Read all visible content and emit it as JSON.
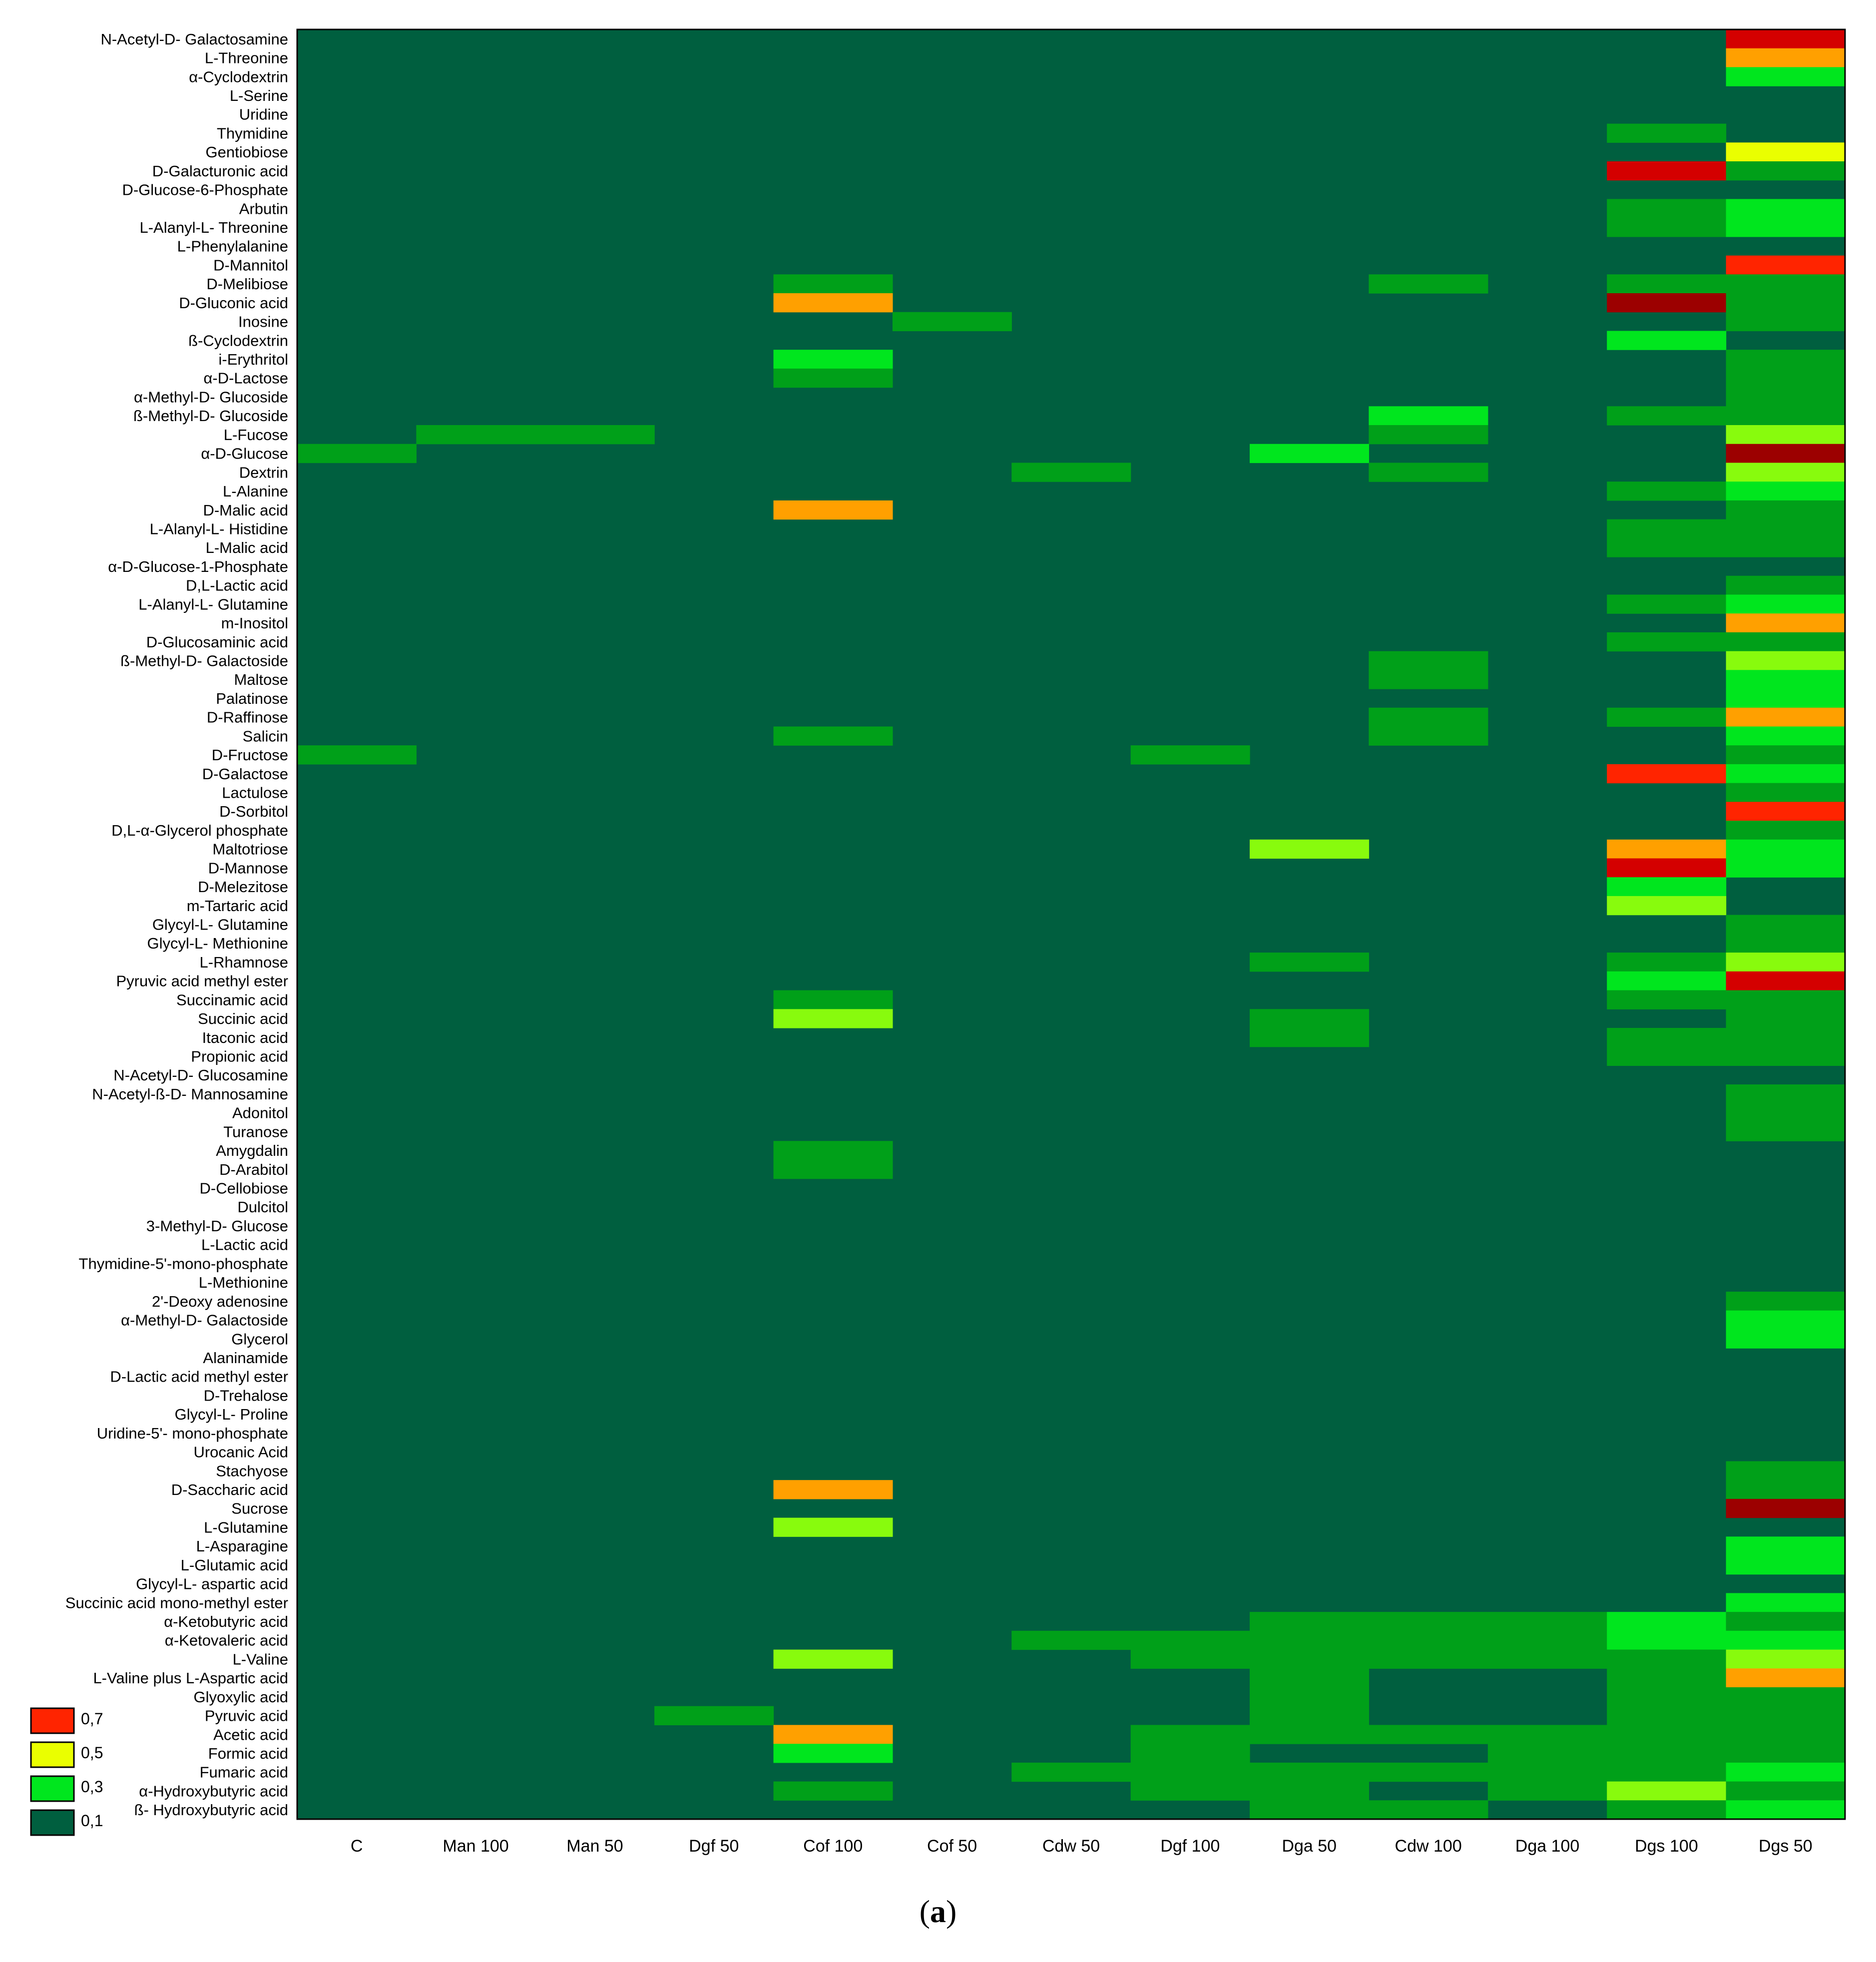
{
  "caption": {
    "open": "(",
    "letter": "a",
    "close": ")"
  },
  "colors": {
    "0.1": "#005f3f",
    "0.2": "#00a019",
    "0.3": "#00e61e",
    "0.4": "#88fb0d",
    "0.5": "#eaff00",
    "0.6": "#ffa000",
    "0.7": "#ff2400",
    "0.8": "#d40000",
    "0.9": "#9c0000"
  },
  "chart_data": {
    "type": "heatmap",
    "title": "",
    "xlabel": "",
    "ylabel": "",
    "columns": [
      "C",
      "Man 100",
      "Man 50",
      "Dgf 50",
      "Cof 100",
      "Cof 50",
      "Cdw 50",
      "Dgf 100",
      "Dga 50",
      "Cdw 100",
      "Dga 100",
      "Dgs 100",
      "Dgs 50"
    ],
    "rows": [
      "N-Acetyl-D- Galactosamine",
      "L-Threonine",
      "α-Cyclodextrin",
      "L-Serine",
      "Uridine",
      "Thymidine",
      "Gentiobiose",
      "D-Galacturonic acid",
      "D-Glucose-6-Phosphate",
      "Arbutin",
      "L-Alanyl-L- Threonine",
      "L-Phenylalanine",
      "D-Mannitol",
      "D-Melibiose",
      "D-Gluconic acid",
      "Inosine",
      "ß-Cyclodextrin",
      "i-Erythritol",
      "α-D-Lactose",
      "α-Methyl-D- Glucoside",
      "ß-Methyl-D- Glucoside",
      "L-Fucose",
      "α-D-Glucose",
      "Dextrin",
      "L-Alanine",
      "D-Malic acid",
      "L-Alanyl-L- Histidine",
      "L-Malic acid",
      "α-D-Glucose-1-Phosphate",
      "D,L-Lactic acid",
      "L-Alanyl-L- Glutamine",
      "m-Inositol",
      "D-Glucosaminic acid",
      "ß-Methyl-D- Galactoside",
      "Maltose",
      "Palatinose",
      "D-Raffinose",
      "Salicin",
      "D-Fructose",
      "D-Galactose",
      "Lactulose",
      "D-Sorbitol",
      "D,L-α-Glycerol phosphate",
      "Maltotriose",
      "D-Mannose",
      "D-Melezitose",
      "m-Tartaric acid",
      "Glycyl-L- Glutamine",
      "Glycyl-L- Methionine",
      "L-Rhamnose",
      "Pyruvic acid methyl ester",
      "Succinamic acid",
      "Succinic acid",
      "Itaconic acid",
      "Propionic acid",
      "N-Acetyl-D- Glucosamine",
      "N-Acetyl-ß-D- Mannosamine",
      "Adonitol",
      "Turanose",
      "Amygdalin",
      "D-Arabitol",
      "D-Cellobiose",
      "Dulcitol",
      "3-Methyl-D- Glucose",
      "L-Lactic acid",
      "Thymidine-5'-mono-phosphate",
      "L-Methionine",
      "2'-Deoxy adenosine",
      "α-Methyl-D- Galactoside",
      "Glycerol",
      "Alaninamide",
      "D-Lactic acid methyl ester",
      "D-Trehalose",
      "Glycyl-L- Proline",
      "Uridine-5'- mono-phosphate",
      "Urocanic Acid",
      "Stachyose",
      "D-Saccharic acid",
      "Sucrose",
      "L-Glutamine",
      "L-Asparagine",
      "L-Glutamic acid",
      "Glycyl-L- aspartic acid",
      "Succinic acid mono-methyl ester",
      "α-Ketobutyric acid",
      "α-Ketovaleric acid",
      "L-Valine",
      "L-Valine plus L-Aspartic acid",
      "Glyoxylic acid",
      "Pyruvic acid",
      "Acetic acid",
      "Formic acid",
      "Fumaric acid",
      "α-Hydroxybutyric acid",
      "ß- Hydroxybutyric acid"
    ],
    "default_value": 0.1,
    "cells": [
      [
        0,
        12,
        0.8
      ],
      [
        1,
        12,
        0.6
      ],
      [
        2,
        12,
        0.3
      ],
      [
        5,
        11,
        0.2
      ],
      [
        6,
        12,
        0.5
      ],
      [
        7,
        11,
        0.8
      ],
      [
        7,
        12,
        0.2
      ],
      [
        9,
        11,
        0.2
      ],
      [
        9,
        12,
        0.3
      ],
      [
        10,
        11,
        0.2
      ],
      [
        10,
        12,
        0.3
      ],
      [
        12,
        12,
        0.7
      ],
      [
        13,
        4,
        0.2
      ],
      [
        13,
        9,
        0.2
      ],
      [
        13,
        11,
        0.2
      ],
      [
        13,
        12,
        0.2
      ],
      [
        14,
        4,
        0.6
      ],
      [
        14,
        11,
        0.9
      ],
      [
        14,
        12,
        0.2
      ],
      [
        15,
        5,
        0.2
      ],
      [
        15,
        12,
        0.2
      ],
      [
        16,
        11,
        0.3
      ],
      [
        17,
        4,
        0.3
      ],
      [
        17,
        12,
        0.2
      ],
      [
        18,
        4,
        0.2
      ],
      [
        18,
        12,
        0.2
      ],
      [
        19,
        12,
        0.2
      ],
      [
        20,
        9,
        0.3
      ],
      [
        20,
        11,
        0.2
      ],
      [
        20,
        12,
        0.2
      ],
      [
        21,
        1,
        0.2
      ],
      [
        21,
        2,
        0.2
      ],
      [
        21,
        9,
        0.2
      ],
      [
        21,
        12,
        0.4
      ],
      [
        22,
        0,
        0.2
      ],
      [
        22,
        8,
        0.3
      ],
      [
        22,
        12,
        0.9
      ],
      [
        23,
        6,
        0.2
      ],
      [
        23,
        9,
        0.2
      ],
      [
        23,
        12,
        0.4
      ],
      [
        24,
        11,
        0.2
      ],
      [
        24,
        12,
        0.3
      ],
      [
        25,
        4,
        0.6
      ],
      [
        25,
        12,
        0.2
      ],
      [
        26,
        11,
        0.2
      ],
      [
        26,
        12,
        0.2
      ],
      [
        27,
        11,
        0.2
      ],
      [
        27,
        12,
        0.2
      ],
      [
        29,
        12,
        0.2
      ],
      [
        30,
        11,
        0.2
      ],
      [
        30,
        12,
        0.3
      ],
      [
        31,
        12,
        0.6
      ],
      [
        32,
        11,
        0.2
      ],
      [
        32,
        12,
        0.2
      ],
      [
        33,
        9,
        0.2
      ],
      [
        33,
        12,
        0.4
      ],
      [
        34,
        9,
        0.2
      ],
      [
        34,
        12,
        0.3
      ],
      [
        35,
        12,
        0.3
      ],
      [
        36,
        9,
        0.2
      ],
      [
        36,
        11,
        0.2
      ],
      [
        36,
        12,
        0.6
      ],
      [
        37,
        4,
        0.2
      ],
      [
        37,
        9,
        0.2
      ],
      [
        37,
        12,
        0.3
      ],
      [
        38,
        0,
        0.2
      ],
      [
        38,
        7,
        0.2
      ],
      [
        38,
        12,
        0.2
      ],
      [
        39,
        11,
        0.7
      ],
      [
        39,
        12,
        0.3
      ],
      [
        40,
        12,
        0.2
      ],
      [
        41,
        12,
        0.7
      ],
      [
        42,
        12,
        0.2
      ],
      [
        43,
        8,
        0.4
      ],
      [
        43,
        11,
        0.6
      ],
      [
        43,
        12,
        0.3
      ],
      [
        44,
        11,
        0.8
      ],
      [
        44,
        12,
        0.3
      ],
      [
        45,
        11,
        0.3
      ],
      [
        46,
        11,
        0.4
      ],
      [
        47,
        12,
        0.2
      ],
      [
        48,
        12,
        0.2
      ],
      [
        49,
        8,
        0.2
      ],
      [
        49,
        11,
        0.2
      ],
      [
        49,
        12,
        0.4
      ],
      [
        50,
        11,
        0.3
      ],
      [
        50,
        12,
        0.8
      ],
      [
        51,
        4,
        0.2
      ],
      [
        51,
        11,
        0.2
      ],
      [
        51,
        12,
        0.2
      ],
      [
        52,
        4,
        0.4
      ],
      [
        52,
        8,
        0.2
      ],
      [
        52,
        12,
        0.2
      ],
      [
        53,
        8,
        0.2
      ],
      [
        53,
        11,
        0.2
      ],
      [
        53,
        12,
        0.2
      ],
      [
        54,
        11,
        0.2
      ],
      [
        54,
        12,
        0.2
      ],
      [
        56,
        12,
        0.2
      ],
      [
        57,
        12,
        0.2
      ],
      [
        58,
        12,
        0.2
      ],
      [
        59,
        4,
        0.2
      ],
      [
        60,
        4,
        0.2
      ],
      [
        67,
        12,
        0.2
      ],
      [
        68,
        12,
        0.3
      ],
      [
        69,
        12,
        0.3
      ],
      [
        76,
        12,
        0.2
      ],
      [
        77,
        4,
        0.6
      ],
      [
        77,
        12,
        0.2
      ],
      [
        78,
        12,
        0.9
      ],
      [
        79,
        4,
        0.4
      ],
      [
        80,
        12,
        0.3
      ],
      [
        81,
        12,
        0.3
      ],
      [
        83,
        12,
        0.3
      ],
      [
        84,
        8,
        0.2
      ],
      [
        84,
        9,
        0.2
      ],
      [
        84,
        10,
        0.2
      ],
      [
        84,
        11,
        0.3
      ],
      [
        84,
        12,
        0.2
      ],
      [
        85,
        6,
        0.2
      ],
      [
        85,
        7,
        0.2
      ],
      [
        85,
        8,
        0.2
      ],
      [
        85,
        9,
        0.2
      ],
      [
        85,
        10,
        0.2
      ],
      [
        85,
        11,
        0.3
      ],
      [
        85,
        12,
        0.3
      ],
      [
        86,
        4,
        0.4
      ],
      [
        86,
        7,
        0.2
      ],
      [
        86,
        8,
        0.2
      ],
      [
        86,
        9,
        0.2
      ],
      [
        86,
        10,
        0.2
      ],
      [
        86,
        11,
        0.2
      ],
      [
        86,
        12,
        0.4
      ],
      [
        87,
        8,
        0.2
      ],
      [
        87,
        11,
        0.2
      ],
      [
        87,
        12,
        0.6
      ],
      [
        88,
        8,
        0.2
      ],
      [
        88,
        11,
        0.2
      ],
      [
        88,
        12,
        0.2
      ],
      [
        89,
        3,
        0.2
      ],
      [
        89,
        8,
        0.2
      ],
      [
        89,
        11,
        0.2
      ],
      [
        89,
        12,
        0.2
      ],
      [
        90,
        4,
        0.6
      ],
      [
        90,
        7,
        0.2
      ],
      [
        90,
        8,
        0.2
      ],
      [
        90,
        9,
        0.2
      ],
      [
        90,
        10,
        0.2
      ],
      [
        90,
        11,
        0.2
      ],
      [
        90,
        12,
        0.2
      ],
      [
        91,
        4,
        0.3
      ],
      [
        91,
        7,
        0.2
      ],
      [
        91,
        10,
        0.2
      ],
      [
        91,
        11,
        0.2
      ],
      [
        91,
        12,
        0.2
      ],
      [
        92,
        6,
        0.2
      ],
      [
        92,
        7,
        0.2
      ],
      [
        92,
        8,
        0.2
      ],
      [
        92,
        9,
        0.2
      ],
      [
        92,
        10,
        0.2
      ],
      [
        92,
        11,
        0.2
      ],
      [
        92,
        12,
        0.3
      ],
      [
        93,
        4,
        0.2
      ],
      [
        93,
        7,
        0.2
      ],
      [
        93,
        8,
        0.2
      ],
      [
        93,
        10,
        0.2
      ],
      [
        93,
        11,
        0.4
      ],
      [
        93,
        12,
        0.2
      ],
      [
        94,
        8,
        0.2
      ],
      [
        94,
        9,
        0.2
      ],
      [
        94,
        11,
        0.2
      ],
      [
        94,
        12,
        0.3
      ]
    ],
    "legend": [
      {
        "label": "0,7",
        "value": 0.7
      },
      {
        "label": "0,5",
        "value": 0.5
      },
      {
        "label": "0,3",
        "value": 0.3
      },
      {
        "label": "0,1",
        "value": 0.1
      }
    ],
    "legend_position": "bottom-left",
    "grid": false
  }
}
